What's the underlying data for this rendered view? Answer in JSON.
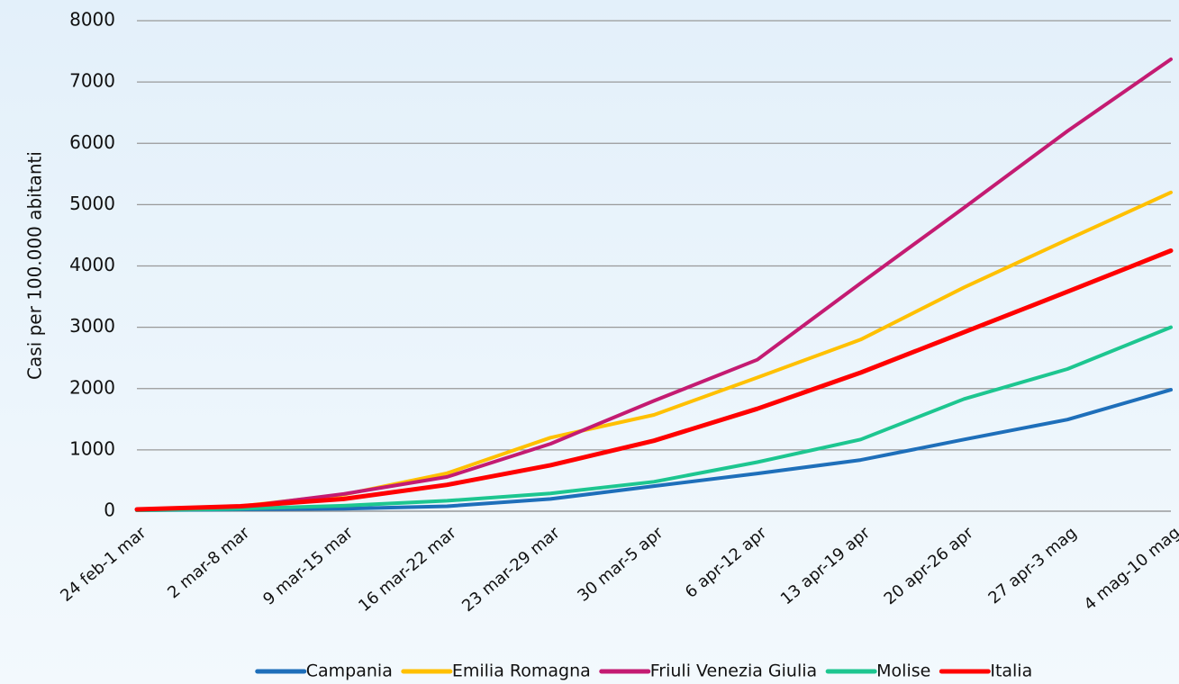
{
  "chart_data": {
    "type": "line",
    "y_label": "Casi per 100.000 abitanti",
    "categories": [
      "24 feb-1 mar",
      "2 mar-8 mar",
      "9 mar-15 mar",
      "16 mar-22 mar",
      "23 mar-29 mar",
      "30 mar-5 apr",
      "6 apr-12 apr",
      "13 apr-19 apr",
      "20 apr-26 apr",
      "27 apr-3 mag",
      "4 mag-10 mag"
    ],
    "series": [
      {
        "name": "Campania",
        "color": "#1e6fba",
        "values": [
          15,
          30,
          40,
          80,
          200,
          410,
          615,
          835,
          1170,
          1495,
          1980
        ]
      },
      {
        "name": "Emilia Romagna",
        "color": "#ffc000",
        "values": [
          30,
          80,
          270,
          620,
          1200,
          1570,
          2180,
          2800,
          3650,
          4430,
          5200
        ]
      },
      {
        "name": "Friuli Venezia Giulia",
        "color": "#c41b72",
        "values": [
          30,
          70,
          280,
          560,
          1100,
          1800,
          2470,
          3720,
          4950,
          6200,
          7370
        ]
      },
      {
        "name": "Molise",
        "color": "#1dc690",
        "values": [
          15,
          40,
          90,
          170,
          290,
          480,
          800,
          1170,
          1830,
          2320,
          3000
        ]
      },
      {
        "name": "Italia",
        "color": "#ff0000",
        "values": [
          30,
          80,
          200,
          430,
          750,
          1150,
          1670,
          2260,
          2920,
          3580,
          4250
        ]
      }
    ],
    "ylim": [
      0,
      8000
    ],
    "yticks": [
      0,
      1000,
      2000,
      3000,
      4000,
      5000,
      6000,
      7000,
      8000
    ],
    "grid": true,
    "legend": "bottom"
  }
}
